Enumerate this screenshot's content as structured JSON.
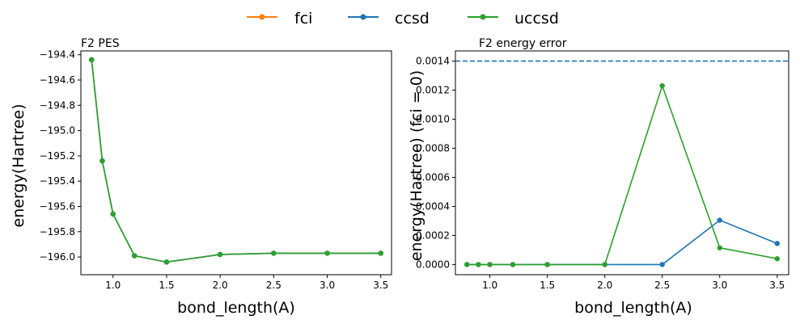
{
  "legend": [
    {
      "name": "fci",
      "color": "#ff7f0e"
    },
    {
      "name": "ccsd",
      "color": "#1f77b4"
    },
    {
      "name": "uccsd",
      "color": "#2ca02c"
    }
  ],
  "chart_data": [
    {
      "type": "line",
      "title": "F2 PES",
      "xlabel": "bond_length(A)",
      "ylabel": "energy(Hartree)",
      "xlim": [
        0.7,
        3.6
      ],
      "ylim": [
        -196.14,
        -194.37
      ],
      "xticks": [
        1.0,
        1.5,
        2.0,
        2.5,
        3.0,
        3.5
      ],
      "xtick_labels": [
        "1.0",
        "1.5",
        "2.0",
        "2.5",
        "3.0",
        "3.5"
      ],
      "yticks": [
        -194.4,
        -194.6,
        -194.8,
        -195.0,
        -195.2,
        -195.4,
        -195.6,
        -195.8,
        -196.0
      ],
      "ytick_labels": [
        "−194.4",
        "−194.6",
        "−194.8",
        "−195.0",
        "−195.2",
        "−195.4",
        "−195.6",
        "−195.8",
        "−196.0"
      ],
      "x": [
        0.8,
        0.9,
        1.0,
        1.2,
        1.5,
        2.0,
        2.5,
        3.0,
        3.5
      ],
      "series": [
        {
          "name": "fci",
          "color": "#ff7f0e",
          "values": [
            -194.44,
            -195.24,
            -195.66,
            -195.99,
            -196.04,
            -195.98,
            -195.97,
            -195.97,
            -195.97
          ]
        },
        {
          "name": "ccsd",
          "color": "#1f77b4",
          "values": [
            -194.44,
            -195.24,
            -195.66,
            -195.99,
            -196.04,
            -195.98,
            -195.97,
            -195.97,
            -195.97
          ]
        },
        {
          "name": "uccsd",
          "color": "#2ca02c",
          "values": [
            -194.44,
            -195.24,
            -195.66,
            -195.99,
            -196.04,
            -195.98,
            -195.97,
            -195.97,
            -195.97
          ]
        }
      ]
    },
    {
      "type": "line",
      "title": "F2 energy error",
      "xlabel": "bond_length(A)",
      "ylabel": "energy(Hartree) (fci = 0)",
      "xlim": [
        0.7,
        3.6
      ],
      "ylim": [
        -7e-05,
        0.00147
      ],
      "xticks": [
        1.0,
        1.5,
        2.0,
        2.5,
        3.0,
        3.5
      ],
      "xtick_labels": [
        "1.0",
        "1.5",
        "2.0",
        "2.5",
        "3.0",
        "3.5"
      ],
      "yticks": [
        0.0,
        0.0002,
        0.0004,
        0.0006,
        0.0008,
        0.001,
        0.0012,
        0.0014
      ],
      "ytick_labels": [
        "0.0000",
        "0.0002",
        "0.0004",
        "0.0006",
        "0.0008",
        "0.0010",
        "0.0012",
        "0.0014"
      ],
      "hline": {
        "y": 0.0014,
        "color": "#1f77b4",
        "style": "dashed"
      },
      "x": [
        0.8,
        0.9,
        1.0,
        1.2,
        1.5,
        2.0,
        2.5,
        3.0,
        3.5
      ],
      "series": [
        {
          "name": "ccsd",
          "color": "#1f77b4",
          "values": [
            0,
            0,
            0,
            0,
            0,
            0,
            0,
            0.000305,
            0.000145
          ]
        },
        {
          "name": "uccsd",
          "color": "#2ca02c",
          "values": [
            0,
            0,
            0,
            0,
            0,
            0,
            0.00123,
            0.000115,
            4e-05
          ]
        }
      ]
    }
  ]
}
